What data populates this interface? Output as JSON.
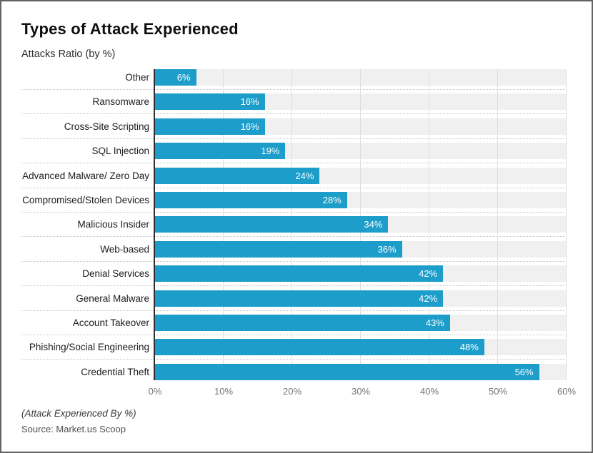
{
  "frame": {
    "background": "#ffffff",
    "border_color": "#636363"
  },
  "header": {
    "title": "Types of Attack Experienced",
    "subtitle": "Attacks Ratio (by %)"
  },
  "chart_data": {
    "type": "bar",
    "orientation": "horizontal",
    "title": "Types of Attack Experienced",
    "subtitle": "Attacks Ratio (by %)",
    "categories": [
      "Other",
      "Ransomware",
      "Cross-Site Scripting",
      "SQL Injection",
      "Advanced Malware/ Zero Day",
      "Compromised/Stolen Devices",
      "Malicious Insider",
      "Web-based",
      "Denial Services",
      "General Malware",
      "Account Takeover",
      "Phishing/Social Engineering",
      "Credential Theft"
    ],
    "values": [
      6,
      16,
      16,
      19,
      24,
      28,
      34,
      36,
      42,
      42,
      43,
      48,
      56
    ],
    "value_labels": [
      "6%",
      "16%",
      "16%",
      "19%",
      "24%",
      "28%",
      "34%",
      "36%",
      "42%",
      "42%",
      "43%",
      "48%",
      "56%"
    ],
    "x_tick_labels": [
      "0%",
      "10%",
      "20%",
      "30%",
      "40%",
      "50%",
      "60%"
    ],
    "x_tick_values": [
      0,
      10,
      20,
      30,
      40,
      50,
      60
    ],
    "xlim": [
      0,
      60
    ],
    "grid": true,
    "legend": false,
    "xlabel": "(Attack Experienced By %)",
    "ylabel": "",
    "colors": {
      "bar": "#1C9DCA",
      "row_band": "#F0F0F0",
      "gridline": "#DEDEDE",
      "separator": "#C3C3C3",
      "axis_line": "#2E2E2E",
      "value_label": "#FFFFFF",
      "category_label": "#1C1C1C",
      "tick_label": "#757575"
    }
  },
  "footer": {
    "note": "(Attack Experienced By %)",
    "source": "Source: Market.us Scoop"
  }
}
